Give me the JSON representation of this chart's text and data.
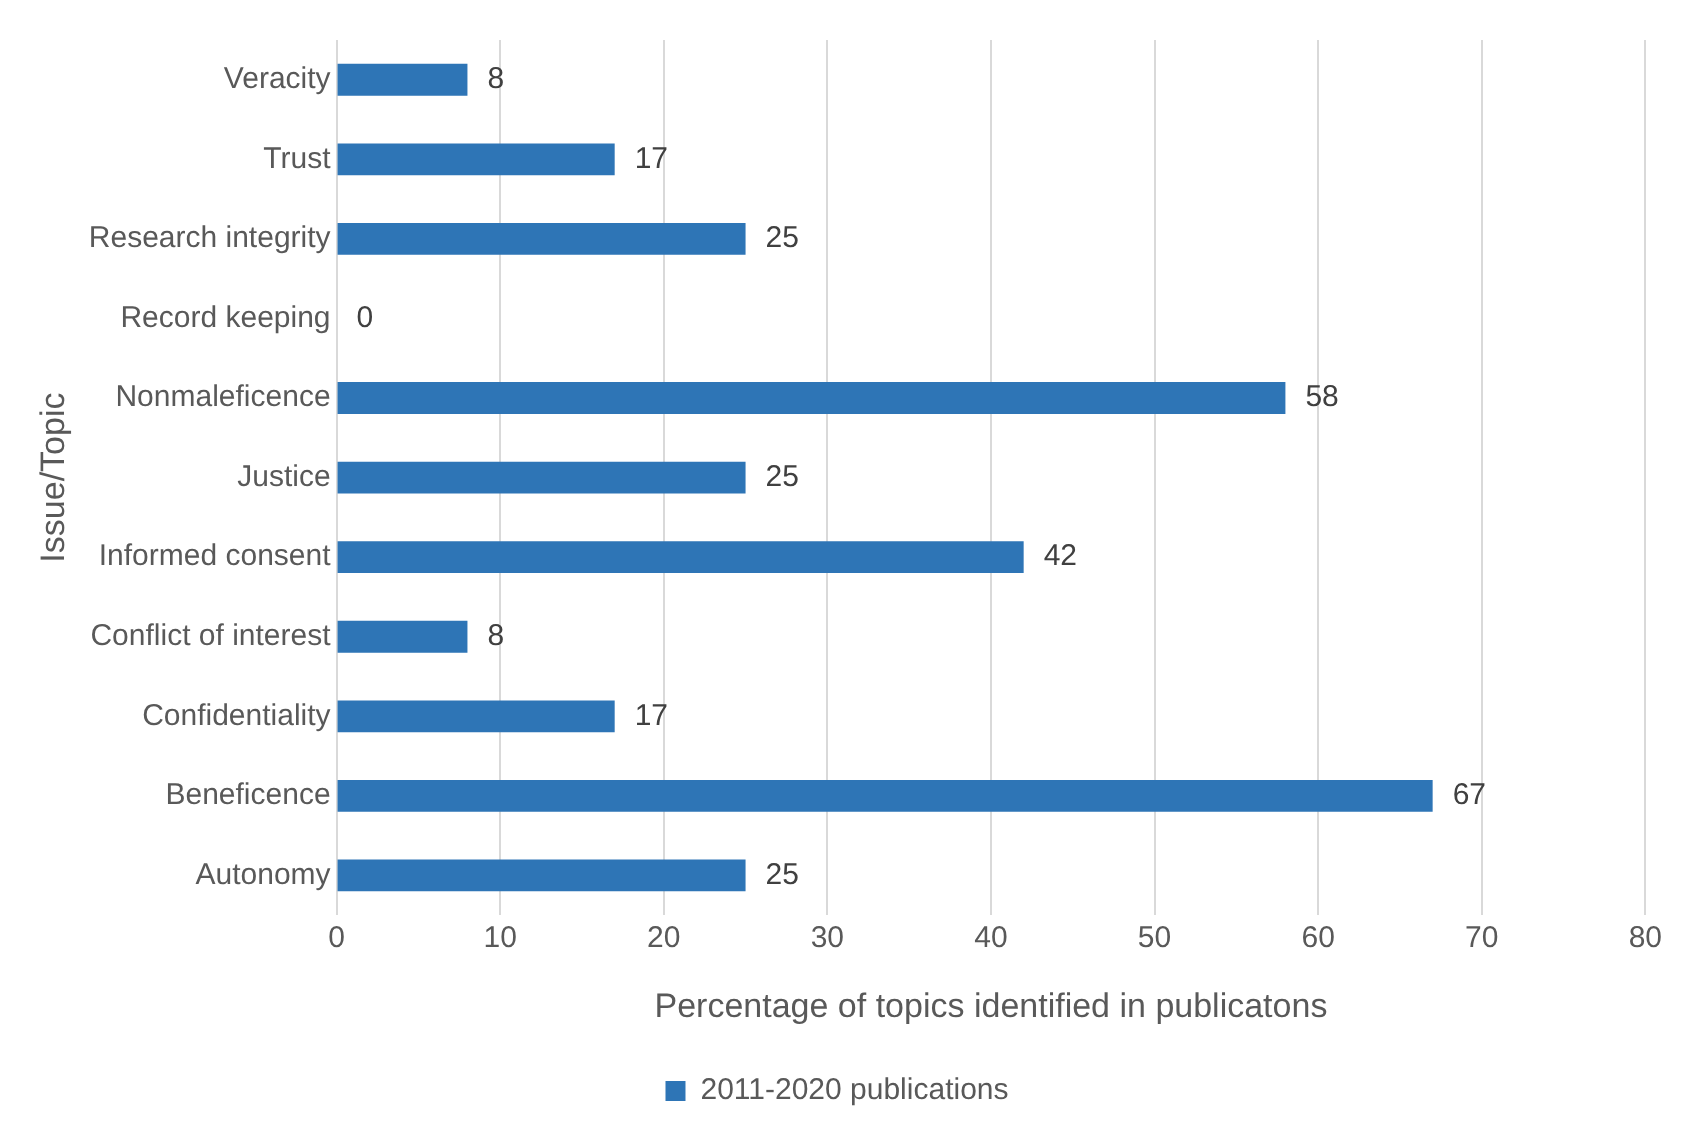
{
  "chart_data": {
    "type": "bar",
    "orientation": "horizontal",
    "xlabel": "Percentage of topics identified in publicatons",
    "ylabel": "Issue/Topic",
    "categories": [
      "Veracity",
      "Trust",
      "Research integrity",
      "Record keeping",
      "Nonmaleficence",
      "Justice",
      "Informed consent",
      "Conflict of interest",
      "Confidentiality",
      "Beneficence",
      "Autonomy"
    ],
    "series": [
      {
        "name": "2011-2020 publications",
        "color": "#2e75b6",
        "values": [
          8,
          17,
          25,
          0,
          58,
          25,
          42,
          8,
          17,
          67,
          25
        ]
      }
    ],
    "xlim": [
      0,
      80
    ],
    "xticks": [
      0,
      10,
      20,
      30,
      40,
      50,
      60,
      70,
      80
    ],
    "grid": "x",
    "legend": "bottom",
    "data_labels": true
  }
}
